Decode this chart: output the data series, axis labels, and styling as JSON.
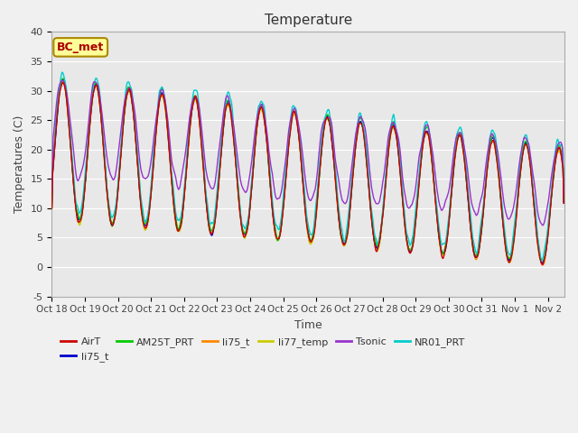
{
  "title": "Temperature",
  "xlabel": "Time",
  "ylabel": "Temperatures (C)",
  "ylim": [
    -5,
    40
  ],
  "xlim_days": 15.5,
  "xtick_labels": [
    "Oct 18",
    "Oct 19",
    "Oct 20",
    "Oct 21",
    "Oct 22",
    "Oct 23",
    "Oct 24",
    "Oct 25",
    "Oct 26",
    "Oct 27",
    "Oct 28",
    "Oct 29",
    "Oct 30",
    "Oct 31",
    "Nov 1",
    "Nov 2"
  ],
  "bg_color": "#e8e8e8",
  "plot_bg": "#e8e8e8",
  "series_colors": {
    "AirT": "#cc0000",
    "li75_t_blue": "#0000cc",
    "AM25T_PRT": "#00cc00",
    "li75_t_orange": "#ff8800",
    "li77_temp": "#cccc00",
    "Tsonic": "#9933cc",
    "NR01_PRT": "#00cccc"
  },
  "legend_box_color": "#ffff99",
  "legend_box_edge": "#aa8800",
  "annotation_text": "BC_met",
  "annotation_color": "#aa0000"
}
